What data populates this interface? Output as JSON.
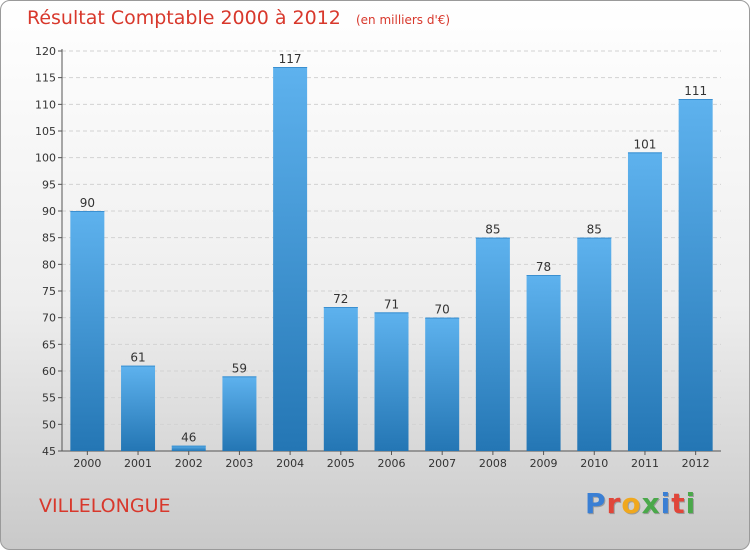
{
  "header": {
    "title": "Résultat Comptable 2000 à 2012",
    "subtitle": "(en milliers d'€)"
  },
  "footer": {
    "location": "VILLELONGUE",
    "logo_text": "Proxiti"
  },
  "colors": {
    "title": "#d8382c",
    "bar_top": "#5eb2ee",
    "bar_bottom": "#2476b4",
    "logo_letters": [
      "#3a7fd4",
      "#e0463a",
      "#f0a81e",
      "#4aa84a",
      "#3a7fd4",
      "#e0463a",
      "#4aa84a"
    ]
  },
  "chart_data": {
    "type": "bar",
    "title": "Résultat Comptable 2000 à 2012",
    "subtitle": "(en milliers d'€)",
    "categories": [
      "2000",
      "2001",
      "2002",
      "2003",
      "2004",
      "2005",
      "2006",
      "2007",
      "2008",
      "2009",
      "2010",
      "2011",
      "2012"
    ],
    "values": [
      90,
      61,
      46,
      59,
      117,
      72,
      71,
      70,
      85,
      78,
      85,
      101,
      111
    ],
    "ylim": [
      45,
      120
    ],
    "yticks": [
      45,
      50,
      55,
      60,
      65,
      70,
      75,
      80,
      85,
      90,
      95,
      100,
      105,
      110,
      115,
      120
    ],
    "grid": true,
    "legend": "none"
  }
}
